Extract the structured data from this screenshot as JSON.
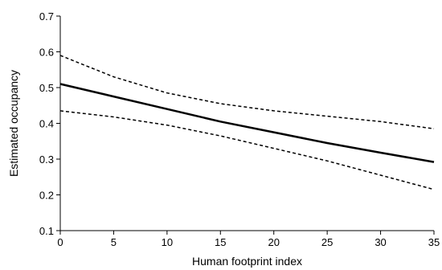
{
  "chart_data": {
    "type": "line",
    "title": "",
    "xlabel": "Human footprint index",
    "ylabel": "Estimated occupancy",
    "xlim": [
      0,
      35
    ],
    "ylim": [
      0.1,
      0.7
    ],
    "x_ticks": [
      0,
      5,
      10,
      15,
      20,
      25,
      30,
      35
    ],
    "y_ticks": [
      0.1,
      0.2,
      0.3,
      0.4,
      0.5,
      0.6,
      0.7
    ],
    "x_tick_labels": [
      "0",
      "5",
      "10",
      "15",
      "20",
      "25",
      "30",
      "35"
    ],
    "y_tick_labels": [
      "0.1",
      "0.2",
      "0.3",
      "0.4",
      "0.5",
      "0.6",
      "0.7"
    ],
    "grid": false,
    "legend": "none",
    "series": [
      {
        "role": "estimate",
        "style": "solid",
        "color": "#000000",
        "x": [
          0,
          5,
          10,
          15,
          20,
          25,
          30,
          35
        ],
        "y": [
          0.51,
          0.475,
          0.44,
          0.405,
          0.375,
          0.345,
          0.318,
          0.292
        ]
      },
      {
        "role": "upper-bound",
        "style": "dashed",
        "color": "#000000",
        "x": [
          0,
          5,
          10,
          15,
          20,
          25,
          30,
          35
        ],
        "y": [
          0.59,
          0.53,
          0.485,
          0.455,
          0.435,
          0.42,
          0.405,
          0.385
        ]
      },
      {
        "role": "lower-bound",
        "style": "dashed",
        "color": "#000000",
        "x": [
          0,
          5,
          10,
          15,
          20,
          25,
          30,
          35
        ],
        "y": [
          0.435,
          0.418,
          0.395,
          0.365,
          0.33,
          0.295,
          0.255,
          0.215
        ]
      }
    ]
  }
}
